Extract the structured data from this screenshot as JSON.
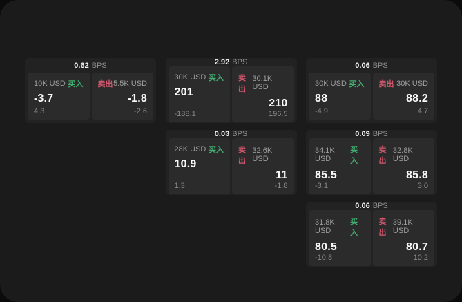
{
  "labels": {
    "bps_suffix": "BPS"
  },
  "colors": {
    "buy_green": "#3fae6e",
    "sell_red": "#d1586c",
    "screen_bg": "#1b1b1c",
    "card_bg": "#222223",
    "panel_bg": "#2b2b2c"
  },
  "cards": [
    {
      "row": 1,
      "col": 1,
      "bps": "0.62",
      "buy": {
        "amount": "10K USD",
        "side": "买入",
        "value": "-3.7",
        "sub": "4.3"
      },
      "sell": {
        "side": "卖出",
        "amount": "5.5K USD",
        "value": "-1.8",
        "sub": "-2.6"
      }
    },
    {
      "row": 1,
      "col": 2,
      "bps": "2.92",
      "buy": {
        "amount": "30K USD",
        "side": "买入",
        "value": "201",
        "sub": "-188.1"
      },
      "sell": {
        "side": "卖出",
        "amount": "30.1K USD",
        "value": "210",
        "sub": "196.5"
      }
    },
    {
      "row": 1,
      "col": 3,
      "bps": "0.06",
      "buy": {
        "amount": "30K USD",
        "side": "买入",
        "value": "88",
        "sub": "-4.9"
      },
      "sell": {
        "side": "卖出",
        "amount": "30K USD",
        "value": "88.2",
        "sub": "4.7"
      }
    },
    {
      "row": 2,
      "col": 2,
      "bps": "0.03",
      "buy": {
        "amount": "28K USD",
        "side": "买入",
        "value": "10.9",
        "sub": "1.3"
      },
      "sell": {
        "side": "卖出",
        "amount": "32.6K USD",
        "value": "11",
        "sub": "-1.8"
      }
    },
    {
      "row": 2,
      "col": 3,
      "bps": "0.09",
      "buy": {
        "amount": "34.1K USD",
        "side": "买入",
        "value": "85.5",
        "sub": "-3.1"
      },
      "sell": {
        "side": "卖出",
        "amount": "32.8K USD",
        "value": "85.8",
        "sub": "3.0"
      }
    },
    {
      "row": 3,
      "col": 3,
      "bps": "0.06",
      "buy": {
        "amount": "31.8K USD",
        "side": "买入",
        "value": "80.5",
        "sub": "-10.8"
      },
      "sell": {
        "side": "卖出",
        "amount": "39.1K USD",
        "value": "80.7",
        "sub": "10.2"
      }
    }
  ]
}
